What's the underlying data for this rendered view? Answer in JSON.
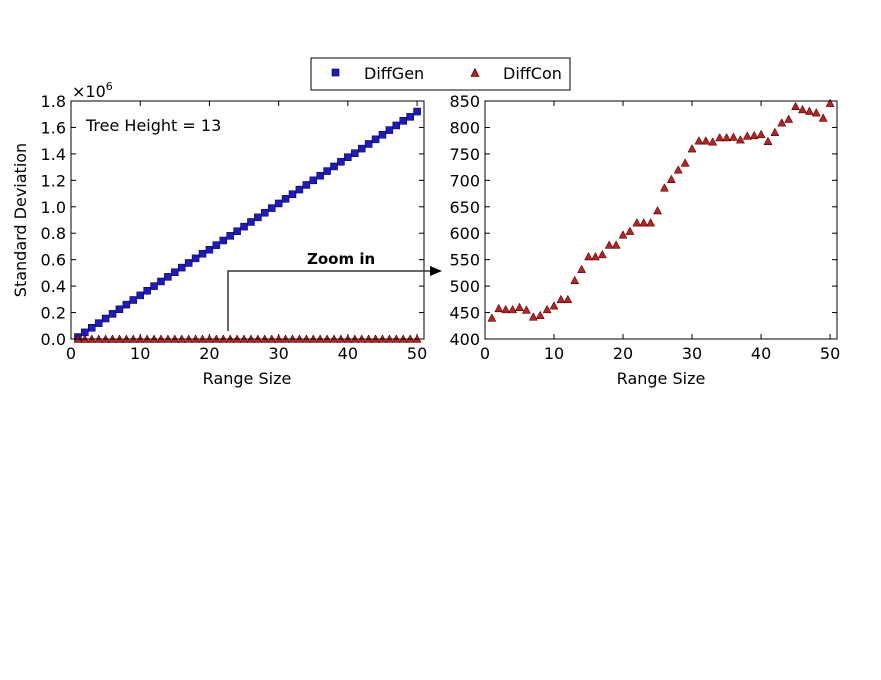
{
  "legend": {
    "entries": [
      {
        "name": "DiffGen",
        "marker": "square",
        "color": "#1a1acc"
      },
      {
        "name": "DiffCon",
        "marker": "triangle",
        "color": "#cc1a1a"
      }
    ]
  },
  "annotation": {
    "zoom_label": "Zoom in"
  },
  "chart_data": [
    {
      "type": "scatter",
      "xlabel": "Range Size",
      "ylabel": "Standard Deviation",
      "y_multiplier_label": "×10",
      "y_multiplier_exp": "6",
      "text_annotation": "Tree Height = 13",
      "xlim": [
        0,
        51
      ],
      "ylim": [
        0,
        1.8
      ],
      "xticks": [
        0,
        10,
        20,
        30,
        40,
        50
      ],
      "yticks": [
        0.0,
        0.2,
        0.4,
        0.6,
        0.8,
        1.0,
        1.2,
        1.4,
        1.6,
        1.8
      ],
      "xtick_labels": [
        "0",
        "10",
        "20",
        "30",
        "40",
        "50"
      ],
      "ytick_labels": [
        "0.0",
        "0.2",
        "0.4",
        "0.6",
        "0.8",
        "1.0",
        "1.2",
        "1.4",
        "1.6",
        "1.8"
      ],
      "series": [
        {
          "name": "DiffGen",
          "x": [
            1,
            2,
            3,
            4,
            5,
            6,
            7,
            8,
            9,
            10,
            11,
            12,
            13,
            14,
            15,
            16,
            17,
            18,
            19,
            20,
            21,
            22,
            23,
            24,
            25,
            26,
            27,
            28,
            29,
            30,
            31,
            32,
            33,
            34,
            35,
            36,
            37,
            38,
            39,
            40,
            41,
            42,
            43,
            44,
            45,
            46,
            47,
            48,
            49,
            50
          ],
          "y": [
            0.015,
            0.05,
            0.085,
            0.12,
            0.155,
            0.19,
            0.225,
            0.26,
            0.295,
            0.33,
            0.365,
            0.4,
            0.435,
            0.47,
            0.505,
            0.54,
            0.575,
            0.61,
            0.645,
            0.675,
            0.71,
            0.745,
            0.78,
            0.815,
            0.85,
            0.885,
            0.92,
            0.955,
            0.99,
            1.025,
            1.06,
            1.095,
            1.13,
            1.165,
            1.2,
            1.235,
            1.27,
            1.305,
            1.34,
            1.375,
            1.405,
            1.44,
            1.475,
            1.51,
            1.545,
            1.58,
            1.615,
            1.65,
            1.68,
            1.72
          ]
        },
        {
          "name": "DiffCon",
          "x": [
            1,
            2,
            3,
            4,
            5,
            6,
            7,
            8,
            9,
            10,
            11,
            12,
            13,
            14,
            15,
            16,
            17,
            18,
            19,
            20,
            21,
            22,
            23,
            24,
            25,
            26,
            27,
            28,
            29,
            30,
            31,
            32,
            33,
            34,
            35,
            36,
            37,
            38,
            39,
            40,
            41,
            42,
            43,
            44,
            45,
            46,
            47,
            48,
            49,
            50
          ],
          "y": [
            0.00044,
            0.000458,
            0.000456,
            0.000456,
            0.00046,
            0.000455,
            0.000442,
            0.000445,
            0.000456,
            0.000463,
            0.000475,
            0.000475,
            0.000511,
            0.000532,
            0.000556,
            0.000556,
            0.00056,
            0.000578,
            0.000578,
            0.000597,
            0.000604,
            0.00062,
            0.00062,
            0.00062,
            0.000643,
            0.000686,
            0.000702,
            0.00072,
            0.000733,
            0.00076,
            0.000775,
            0.000775,
            0.000773,
            0.000781,
            0.000781,
            0.000782,
            0.000777,
            0.000784,
            0.000785,
            0.000787,
            0.000774,
            0.000791,
            0.000809,
            0.000816,
            0.00084,
            0.000834,
            0.000831,
            0.000828,
            0.000818,
            0.000846
          ]
        }
      ]
    },
    {
      "type": "scatter",
      "xlabel": "Range Size",
      "ylabel": "",
      "xlim": [
        0,
        51
      ],
      "ylim": [
        400,
        850
      ],
      "xticks": [
        0,
        10,
        20,
        30,
        40,
        50
      ],
      "yticks": [
        400,
        450,
        500,
        550,
        600,
        650,
        700,
        750,
        800,
        850
      ],
      "xtick_labels": [
        "0",
        "10",
        "20",
        "30",
        "40",
        "50"
      ],
      "ytick_labels": [
        "400",
        "450",
        "500",
        "550",
        "600",
        "650",
        "700",
        "750",
        "800",
        "850"
      ],
      "series": [
        {
          "name": "DiffCon",
          "x": [
            1,
            2,
            3,
            4,
            5,
            6,
            7,
            8,
            9,
            10,
            11,
            12,
            13,
            14,
            15,
            16,
            17,
            18,
            19,
            20,
            21,
            22,
            23,
            24,
            25,
            26,
            27,
            28,
            29,
            30,
            31,
            32,
            33,
            34,
            35,
            36,
            37,
            38,
            39,
            40,
            41,
            42,
            43,
            44,
            45,
            46,
            47,
            48,
            49,
            50
          ],
          "y": [
            440,
            458,
            456,
            456,
            460,
            455,
            442,
            445,
            456,
            463,
            475,
            475,
            511,
            532,
            556,
            556,
            560,
            578,
            578,
            597,
            604,
            620,
            620,
            620,
            643,
            686,
            702,
            720,
            733,
            760,
            775,
            775,
            773,
            781,
            781,
            782,
            777,
            784,
            785,
            787,
            774,
            791,
            809,
            816,
            840,
            834,
            831,
            828,
            818,
            846
          ]
        }
      ]
    }
  ]
}
